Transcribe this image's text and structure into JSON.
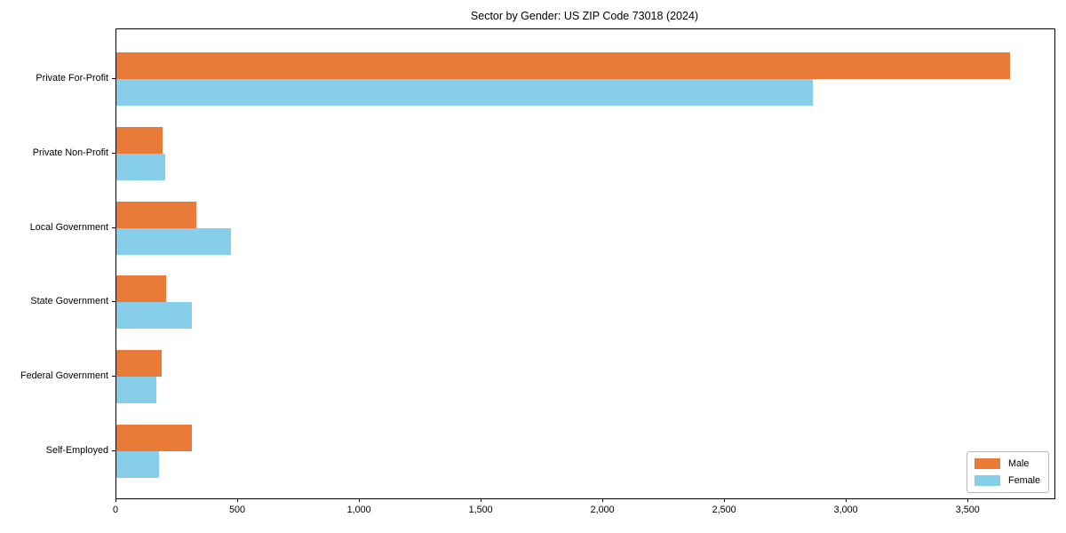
{
  "title": "Sector by Gender: US ZIP Code 73018 (2024)",
  "chart_data": {
    "type": "bar",
    "orientation": "horizontal",
    "title": "Sector by Gender: US ZIP Code 73018 (2024)",
    "xlabel": "",
    "ylabel": "",
    "categories": [
      "Private For-Profit",
      "Private Non-Profit",
      "Local Government",
      "State Government",
      "Federal Government",
      "Self-Employed"
    ],
    "series": [
      {
        "name": "Male",
        "color": "#e97a38",
        "values": [
          3670,
          190,
          330,
          205,
          185,
          310
        ]
      },
      {
        "name": "Female",
        "color": "#87ceeb",
        "values": [
          2860,
          200,
          470,
          310,
          165,
          175
        ]
      }
    ],
    "xlim": [
      0,
      3853
    ],
    "xticks": [
      0,
      500,
      1000,
      1500,
      2000,
      2500,
      3000,
      3500
    ],
    "xtick_labels": [
      "0",
      "500",
      "1,000",
      "1,500",
      "2,000",
      "2,500",
      "3,000",
      "3,500"
    ],
    "grid": false,
    "legend": {
      "position": "lower right",
      "entries": [
        "Male",
        "Female"
      ]
    },
    "spine_color": "#000000",
    "background_color": "#ffffff",
    "text_color": "#000000"
  }
}
